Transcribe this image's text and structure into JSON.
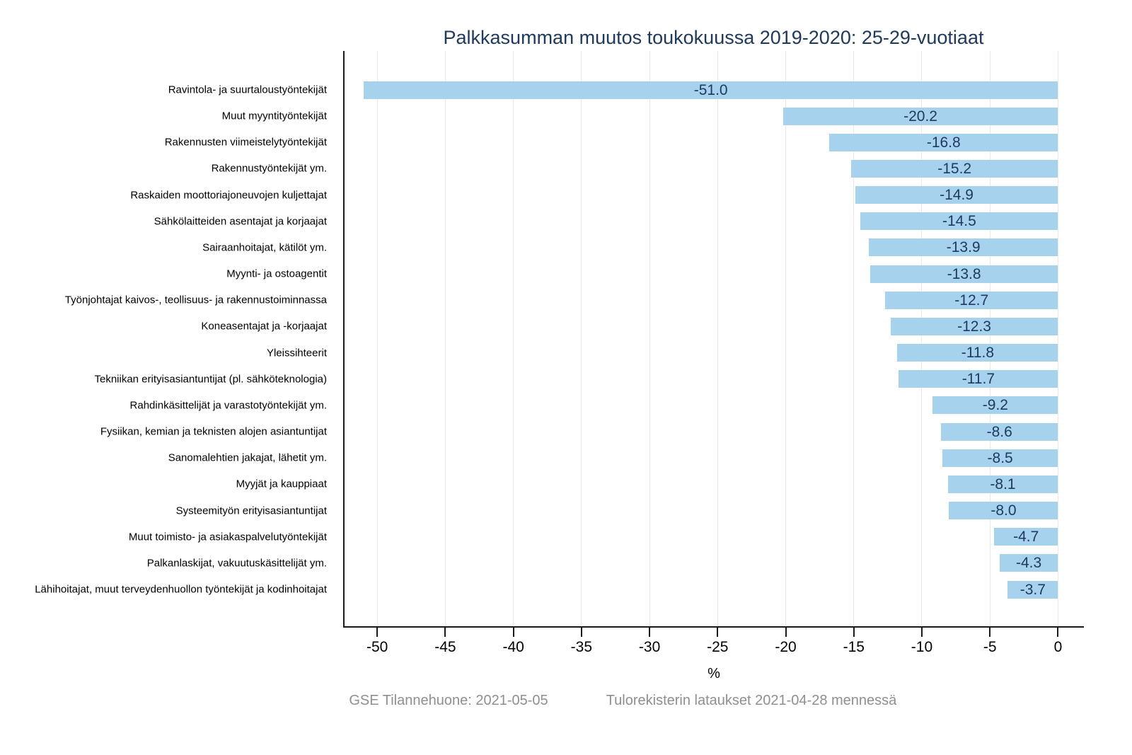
{
  "title": "Palkkasumman muutos toukokuussa 2019-2020: 25-29-vuotiaat",
  "x_axis_label": "%",
  "footer": {
    "left": "GSE Tilannehuone: 2021-05-05",
    "right": "Tulorekisterin lataukset 2021-04-28 mennessä"
  },
  "colors": {
    "bar_fill": "#a7d2ee",
    "title_text": "#1f3a60",
    "value_label_text": "#1f3a60",
    "gridline": "#e8e8e8",
    "axis_line": "#1a1a1a",
    "footer_text": "#8f8f8f",
    "category_text": "#000000"
  },
  "chart_data": {
    "type": "bar",
    "orientation": "horizontal",
    "title": "Palkkasumman muutos toukokuussa 2019-2020: 25-29-vuotiaat",
    "xlabel": "%",
    "ylabel": "",
    "xlim": [
      -52.4,
      1.9
    ],
    "xticks": [
      -50,
      -45,
      -40,
      -35,
      -30,
      -25,
      -20,
      -15,
      -10,
      -5,
      0
    ],
    "grid": true,
    "legend": false,
    "categories": [
      "Ravintola- ja suurtaloustyöntekijät",
      "Muut myyntityöntekijät",
      "Rakennusten viimeistelytyöntekijät",
      "Rakennustyöntekijät ym.",
      "Raskaiden moottoriajoneuvojen kuljettajat",
      "Sähkölaitteiden asentajat ja korjaajat",
      "Sairaanhoitajat, kätilöt ym.",
      "Myynti- ja ostoagentit",
      "Työnjohtajat kaivos-, teollisuus- ja rakennustoiminnassa",
      "Koneasentajat ja -korjaajat",
      "Yleissihteerit",
      "Tekniikan erityisasiantuntijat (pl. sähköteknologia)",
      "Rahdinkäsittelijät ja varastotyöntekijät ym.",
      "Fysiikan, kemian ja teknisten alojen asiantuntijat",
      "Sanomalehtien jakajat, lähetit ym.",
      "Myyjät ja kauppiaat",
      "Systeemityön erityisasiantuntijat",
      "Muut toimisto- ja asiakaspalvelutyöntekijät",
      "Palkanlaskijat, vakuutuskäsittelijät ym.",
      "Lähihoitajat, muut terveydenhuollon työntekijät ja kodinhoitajat"
    ],
    "values": [
      -51.0,
      -20.2,
      -16.8,
      -15.2,
      -14.9,
      -14.5,
      -13.9,
      -13.8,
      -12.7,
      -12.3,
      -11.8,
      -11.7,
      -9.2,
      -8.6,
      -8.5,
      -8.1,
      -8.0,
      -4.7,
      -4.3,
      -3.7
    ],
    "value_labels": [
      "-51.0",
      "-20.2",
      "-16.8",
      "-15.2",
      "-14.9",
      "-14.5",
      "-13.9",
      "-13.8",
      "-12.7",
      "-12.3",
      "-11.8",
      "-11.7",
      "-9.2",
      "-8.6",
      "-8.5",
      "-8.1",
      "-8.0",
      "-4.7",
      "-4.3",
      "-3.7"
    ]
  }
}
